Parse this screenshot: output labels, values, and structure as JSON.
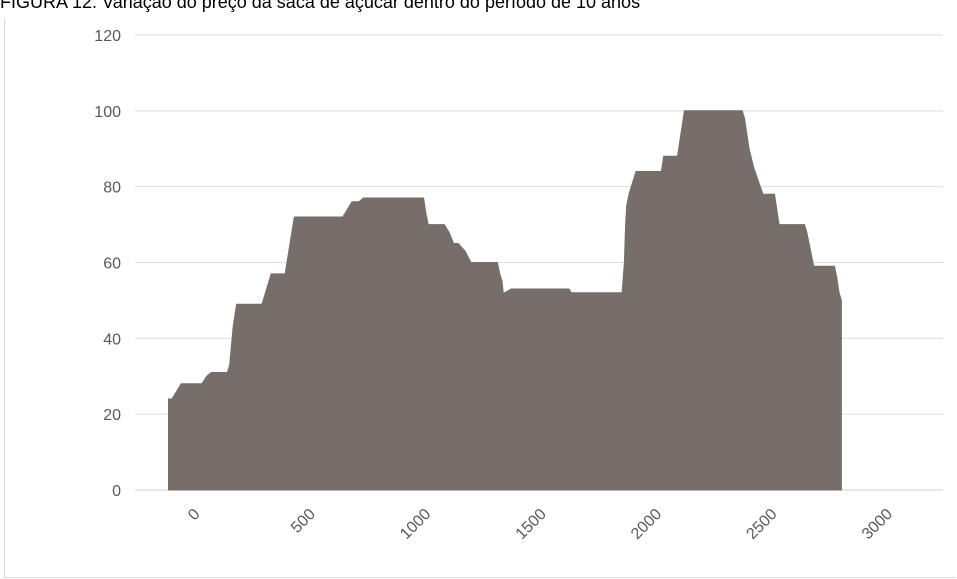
{
  "title": "FIGURA 12. Variação do preço da saca de açúcar dentro do período de 10 anos",
  "chart_data": {
    "type": "area",
    "title": "FIGURA 12. Variação do preço da saca de açúcar dentro do período de 10 anos",
    "xlabel": "",
    "ylabel": "",
    "xlim": [
      -250,
      3250
    ],
    "ylim": [
      0,
      120
    ],
    "x_ticks": [
      0,
      500,
      1000,
      1500,
      2000,
      2500,
      3000
    ],
    "y_ticks": [
      0,
      20,
      40,
      60,
      80,
      100,
      120
    ],
    "grid": "horizontal",
    "legend": "none",
    "color": "#756e6b",
    "series": [
      {
        "x": [
          -105,
          -90,
          -70,
          -50,
          0,
          40,
          60,
          80,
          120,
          150,
          160,
          175,
          190,
          300,
          330,
          340,
          400,
          440,
          455,
          470,
          650,
          690,
          700,
          720,
          740,
          760,
          970,
          1000,
          1010,
          1020,
          1050,
          1090,
          1110,
          1130,
          1150,
          1180,
          1205,
          1210,
          1320,
          1330,
          1340,
          1345,
          1350,
          1380,
          1390,
          1620,
          1630,
          1640,
          1645,
          1650,
          1860,
          1870,
          1875,
          1880,
          1890,
          1900,
          1920,
          1950,
          1960,
          2030,
          2040,
          2100,
          2110,
          2130,
          2380,
          2390,
          2400,
          2410,
          2430,
          2470,
          2480,
          2520,
          2540,
          2635,
          2650,
          2660,
          2670,
          2690,
          2760,
          2770,
          2780,
          2790,
          2800,
          2810
        ],
        "y": [
          24,
          24,
          26,
          28,
          28,
          28,
          30,
          31,
          31,
          31,
          33,
          43,
          49,
          49,
          55,
          57,
          57,
          72,
          72,
          72,
          72,
          76,
          76,
          76,
          77,
          77,
          77,
          77,
          73,
          70,
          70,
          70,
          68,
          65,
          65,
          63,
          60,
          60,
          60,
          57,
          55,
          52,
          52,
          53,
          53,
          53,
          53,
          52,
          52,
          52,
          52,
          60,
          70,
          75,
          78,
          80,
          84,
          84,
          84,
          84,
          88,
          88,
          92,
          100,
          100,
          98,
          94,
          90,
          85,
          78,
          78,
          78,
          70,
          70,
          70,
          68,
          65,
          59,
          59,
          59,
          59,
          56,
          52,
          50
        ]
      }
    ]
  }
}
